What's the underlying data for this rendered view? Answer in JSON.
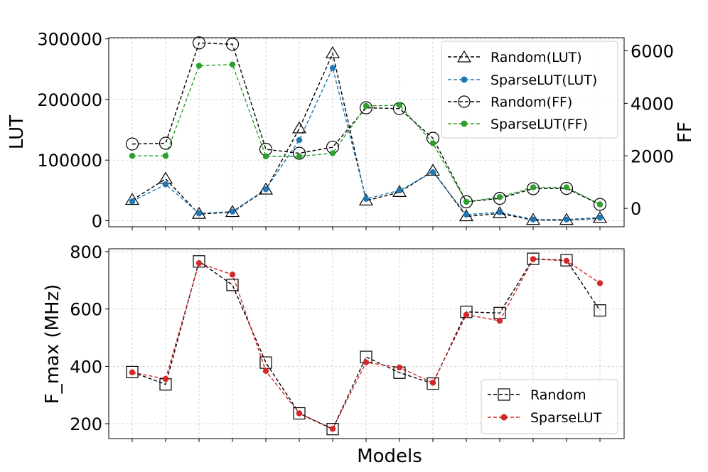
{
  "chart_data": [
    {
      "type": "line",
      "panel": "top",
      "xlabel": "",
      "ylabel": "LUT",
      "y2label": "FF",
      "ylim": [
        -10000,
        302000
      ],
      "y2lim": [
        -700,
        6500
      ],
      "yticks": [
        0,
        100000,
        200000,
        300000
      ],
      "y2ticks": [
        0,
        2000,
        4000,
        6000
      ],
      "ytick_labels": [
        "0",
        "100000",
        "200000",
        "300000"
      ],
      "y2tick_labels": [
        "0",
        "2000",
        "4000",
        "6000"
      ],
      "x": [
        1,
        2,
        3,
        4,
        5,
        6,
        7,
        8,
        9,
        10,
        11,
        12,
        13,
        14,
        15
      ],
      "grid": true,
      "legend_position": "top-right",
      "series": [
        {
          "name": "Random(LUT)",
          "axis": "left",
          "marker": "triangle",
          "color": "#000000",
          "values": [
            34000,
            69000,
            11000,
            14000,
            51000,
            152000,
            276000,
            33000,
            47000,
            82000,
            7000,
            12000,
            1000,
            1000,
            4000
          ]
        },
        {
          "name": "SparseLUT(LUT)",
          "axis": "left",
          "marker": "dot",
          "color": "#1f77b4",
          "values": [
            32000,
            60000,
            12000,
            15000,
            52000,
            133000,
            252000,
            36000,
            50000,
            80000,
            10000,
            14000,
            2000,
            2000,
            5000
          ]
        },
        {
          "name": "Random(FF)",
          "axis": "right",
          "marker": "circle",
          "color": "#000000",
          "values": [
            2450,
            2480,
            6300,
            6250,
            2250,
            2100,
            2330,
            3830,
            3800,
            2670,
            250,
            380,
            750,
            760,
            150
          ]
        },
        {
          "name": "SparseLUT(FF)",
          "axis": "right",
          "marker": "dot",
          "color": "#2ca02c",
          "values": [
            2000,
            2000,
            5430,
            5480,
            1980,
            1980,
            2100,
            3900,
            3930,
            2480,
            250,
            430,
            800,
            800,
            150
          ]
        }
      ]
    },
    {
      "type": "line",
      "panel": "bottom",
      "xlabel": "Models",
      "ylabel": "F_max (MHz)",
      "ylim": [
        148,
        810
      ],
      "yticks": [
        200,
        400,
        600,
        800
      ],
      "ytick_labels": [
        "200",
        "400",
        "600",
        "800"
      ],
      "x": [
        1,
        2,
        3,
        4,
        5,
        6,
        7,
        8,
        9,
        10,
        11,
        12,
        13,
        14,
        15
      ],
      "grid": true,
      "legend_position": "bottom-right",
      "series": [
        {
          "name": "Random",
          "marker": "square",
          "color": "#000000",
          "values": [
            380,
            337,
            766,
            684,
            413,
            236,
            181,
            433,
            378,
            340,
            590,
            586,
            775,
            770,
            595
          ]
        },
        {
          "name": "SparseLUT",
          "marker": "dot",
          "color": "#d62728",
          "values": [
            379,
            356,
            760,
            720,
            384,
            236,
            182,
            414,
            396,
            343,
            580,
            559,
            774,
            768,
            690
          ]
        }
      ]
    }
  ]
}
